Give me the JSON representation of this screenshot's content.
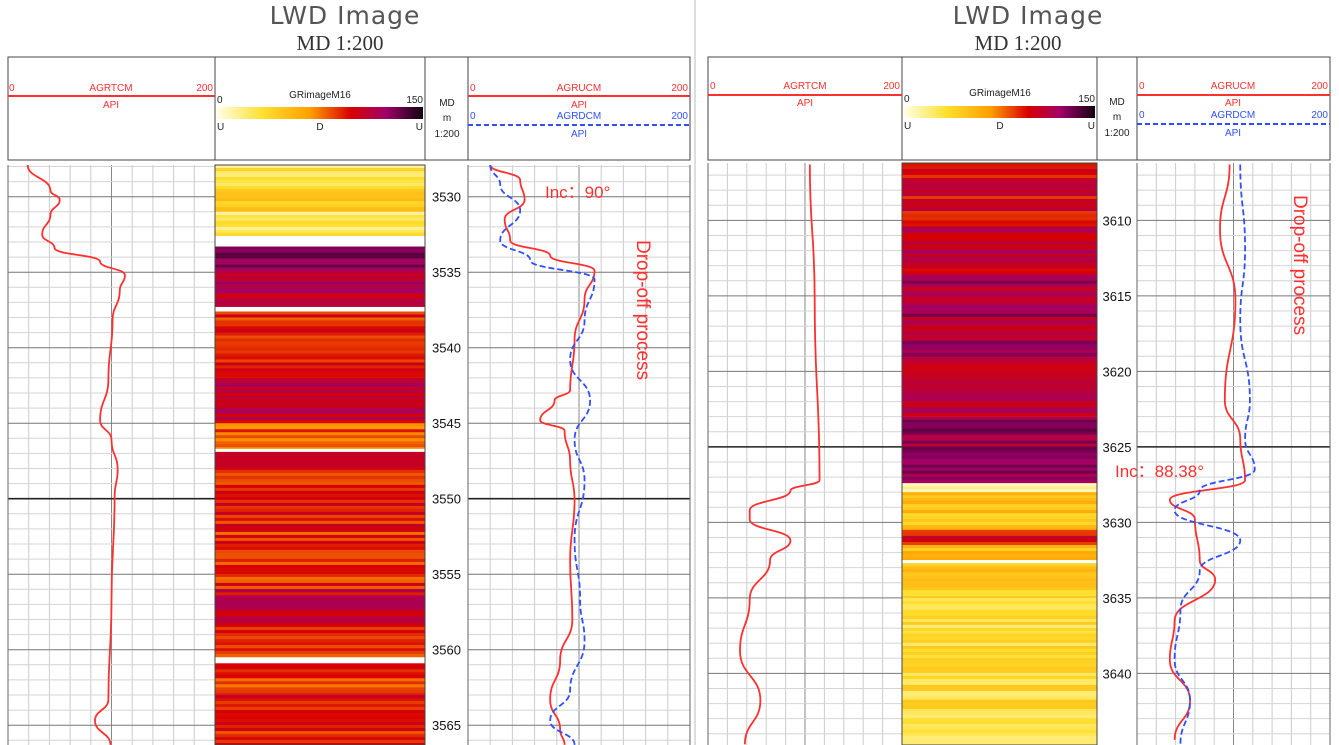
{
  "chart_data": [
    {
      "type": "line",
      "title": "LWD Image",
      "subtitle": "MD 1:200",
      "depth_unit": "m",
      "depth_range": [
        3527.9,
        3566.3
      ],
      "depth_ticks": [
        3530,
        3535,
        3540,
        3545,
        3550,
        3555,
        3560,
        3565
      ],
      "depth_header": [
        "MD",
        "m",
        "1:200"
      ],
      "track1": {
        "curve": "AGRTCM",
        "unit": "API",
        "range": [
          0,
          200
        ],
        "color": "#ff3030",
        "style": "solid",
        "points": [
          [
            3527.9,
            19
          ],
          [
            3529.6,
            41
          ],
          [
            3530.2,
            50
          ],
          [
            3531.2,
            41
          ],
          [
            3532.5,
            33
          ],
          [
            3533.4,
            45
          ],
          [
            3534.3,
            89
          ],
          [
            3535.2,
            113
          ],
          [
            3536.2,
            108
          ],
          [
            3538.2,
            101
          ],
          [
            3542.1,
            97
          ],
          [
            3544.8,
            89
          ],
          [
            3546.1,
            100
          ],
          [
            3548.1,
            106
          ],
          [
            3549.8,
            103
          ],
          [
            3556.7,
            100
          ],
          [
            3563.3,
            97
          ],
          [
            3564.7,
            84
          ],
          [
            3566.3,
            99
          ]
        ]
      },
      "image": {
        "curve": "GRimageM16",
        "range": [
          0,
          150
        ],
        "scale_labels": [
          "U",
          "D",
          "U"
        ],
        "bands": [
          [
            3527.9,
            3529.5,
            28
          ],
          [
            3529.5,
            3531,
            45
          ],
          [
            3531,
            3532.6,
            25
          ],
          [
            3532.6,
            3533.3,
            0
          ],
          [
            3533.3,
            3535,
            125
          ],
          [
            3535,
            3537.3,
            112
          ],
          [
            3537.3,
            3537.6,
            0
          ],
          [
            3537.6,
            3542,
            92
          ],
          [
            3542,
            3545,
            108
          ],
          [
            3545,
            3546.7,
            80
          ],
          [
            3546.7,
            3546.9,
            0
          ],
          [
            3546.9,
            3552,
            95
          ],
          [
            3552,
            3556,
            90
          ],
          [
            3556,
            3558.5,
            105
          ],
          [
            3558.5,
            3560.5,
            88
          ],
          [
            3560.5,
            3560.9,
            0
          ],
          [
            3560.9,
            3563,
            85
          ],
          [
            3563,
            3566.3,
            95
          ]
        ]
      },
      "track3": {
        "range": [
          0,
          200
        ],
        "series": [
          {
            "name": "AGRUCM",
            "unit": "API",
            "color": "#ff3030",
            "style": "solid",
            "points": [
              [
                3527.9,
                20
              ],
              [
                3528.9,
                47
              ],
              [
                3530.2,
                51
              ],
              [
                3531.5,
                33
              ],
              [
                3532.9,
                38
              ],
              [
                3533.9,
                74
              ],
              [
                3534.9,
                114
              ],
              [
                3536.8,
                105
              ],
              [
                3539.5,
                96
              ],
              [
                3542.8,
                92
              ],
              [
                3543.5,
                78
              ],
              [
                3544.8,
                65
              ],
              [
                3545.5,
                87
              ],
              [
                3547.5,
                92
              ],
              [
                3550.1,
                96
              ],
              [
                3554.1,
                92
              ],
              [
                3558.0,
                94
              ],
              [
                3560.7,
                83
              ],
              [
                3563.3,
                74
              ],
              [
                3565.3,
                83
              ],
              [
                3566.3,
                87
              ]
            ]
          },
          {
            "name": "AGRDCM",
            "unit": "API",
            "color": "#3050ff",
            "style": "dashed",
            "points": [
              [
                3527.9,
                20
              ],
              [
                3529.2,
                29
              ],
              [
                3530.9,
                47
              ],
              [
                3532.9,
                29
              ],
              [
                3534.2,
                56
              ],
              [
                3535.5,
                114
              ],
              [
                3538.2,
                105
              ],
              [
                3540.8,
                92
              ],
              [
                3543.5,
                110
              ],
              [
                3546.1,
                96
              ],
              [
                3548.8,
                105
              ],
              [
                3552.7,
                96
              ],
              [
                3556.7,
                101
              ],
              [
                3559.4,
                105
              ],
              [
                3562.7,
                92
              ],
              [
                3564.7,
                74
              ],
              [
                3566.3,
                96
              ]
            ]
          }
        ]
      },
      "reference_line_depth": 3550,
      "annotations": {
        "inclination": "Inc：90°",
        "process": "Drop-off process"
      }
    },
    {
      "type": "line",
      "title": "LWD Image",
      "subtitle": "MD 1:200",
      "depth_unit": "m",
      "depth_range": [
        3606.2,
        3644.7
      ],
      "depth_ticks": [
        3610,
        3615,
        3620,
        3625,
        3630,
        3635,
        3640
      ],
      "depth_header": [
        "MD",
        "m",
        "1:200"
      ],
      "track1": {
        "curve": "AGRTCM",
        "unit": "API",
        "range": [
          0,
          200
        ],
        "color": "#ff3030",
        "style": "solid",
        "points": [
          [
            3606.3,
            105
          ],
          [
            3615.3,
            110
          ],
          [
            3627.2,
            115
          ],
          [
            3627.9,
            85
          ],
          [
            3629.2,
            43
          ],
          [
            3629.8,
            43
          ],
          [
            3631.2,
            85
          ],
          [
            3632.5,
            64
          ],
          [
            3635.1,
            43
          ],
          [
            3638.5,
            33
          ],
          [
            3641.8,
            54
          ],
          [
            3644.7,
            38
          ]
        ]
      },
      "image": {
        "curve": "GRimageM16",
        "range": [
          0,
          150
        ],
        "scale_labels": [
          "U",
          "D",
          "U"
        ],
        "bands": [
          [
            3606.2,
            3610,
            100
          ],
          [
            3610,
            3614,
            108
          ],
          [
            3614,
            3619,
            118
          ],
          [
            3619,
            3623,
            105
          ],
          [
            3623,
            3627.4,
            122
          ],
          [
            3627.4,
            3628,
            15
          ],
          [
            3628,
            3630.5,
            50
          ],
          [
            3630.5,
            3631.5,
            95
          ],
          [
            3631.5,
            3632.5,
            55
          ],
          [
            3632.5,
            3632.7,
            0
          ],
          [
            3632.7,
            3635,
            45
          ],
          [
            3635,
            3644.7,
            33
          ]
        ]
      },
      "track3": {
        "range": [
          0,
          200
        ],
        "series": [
          {
            "name": "AGRUCM",
            "unit": "API",
            "color": "#ff3030",
            "style": "solid",
            "points": [
              [
                3606.3,
                96
              ],
              [
                3610.6,
                86
              ],
              [
                3615.3,
                102
              ],
              [
                3621.9,
                91
              ],
              [
                3624.5,
                107
              ],
              [
                3627.2,
                112
              ],
              [
                3628.5,
                34
              ],
              [
                3629.8,
                60
              ],
              [
                3632.5,
                65
              ],
              [
                3633.8,
                81
              ],
              [
                3636.5,
                39
              ],
              [
                3639.1,
                34
              ],
              [
                3641.8,
                55
              ],
              [
                3644.4,
                39
              ]
            ]
          },
          {
            "name": "AGRDCM",
            "unit": "API",
            "color": "#3050ff",
            "style": "dashed",
            "points": [
              [
                3606.3,
                107
              ],
              [
                3611.9,
                112
              ],
              [
                3616.6,
                107
              ],
              [
                3621.9,
                117
              ],
              [
                3624.5,
                112
              ],
              [
                3626.5,
                122
              ],
              [
                3627.9,
                65
              ],
              [
                3629.2,
                39
              ],
              [
                3631.2,
                107
              ],
              [
                3633.2,
                65
              ],
              [
                3635.8,
                45
              ],
              [
                3639.1,
                39
              ],
              [
                3641.8,
                55
              ],
              [
                3644.7,
                45
              ]
            ]
          }
        ]
      },
      "reference_line_depth": 3625,
      "annotations": {
        "inclination": "Inc：88.38°",
        "process": "Drop-off process"
      }
    }
  ],
  "labels": {
    "title": "LWD Image",
    "subtitle": "MD 1:200",
    "t1_curve": "AGRTCM",
    "unit": "API",
    "min": "0",
    "max": "200",
    "img_curve": "GRimageM16",
    "img_min": "0",
    "img_max": "150",
    "u": "U",
    "d": "D",
    "md": "MD",
    "m": "m",
    "scale": "1:200",
    "t3_curve1": "AGRUCM",
    "t3_curve2": "AGRDCM",
    "inc_left": "Inc：90°",
    "inc_right": "Inc：88.38°",
    "process": "Drop-off process"
  },
  "colors": {
    "red_curve": "#ff3030",
    "blue_curve": "#3050ff",
    "colormap": [
      "#ffffe6",
      "#ffe030",
      "#ffa000",
      "#d80000",
      "#a0006a",
      "#100010"
    ]
  }
}
